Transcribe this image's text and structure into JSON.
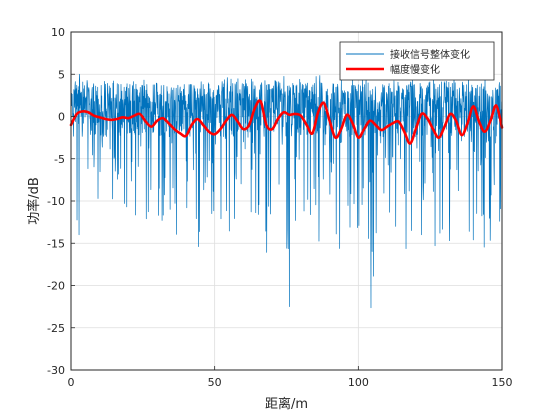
{
  "chart_data": {
    "type": "line",
    "title": "",
    "xlabel": "距离/m",
    "ylabel": "功率/dB",
    "xlim": [
      0,
      150
    ],
    "ylim": [
      -30,
      10
    ],
    "xticks": [
      "0",
      "50",
      "100",
      "150"
    ],
    "yticks": [
      "10",
      "5",
      "0",
      "-5",
      "-10",
      "-15",
      "-20",
      "-25",
      "-30"
    ],
    "grid": true,
    "legend_position": "top-right",
    "series": [
      {
        "name": "接收信号整体变化",
        "color": "#0072BD",
        "style": "thin noisy line, ~1500 samples; plotted as an approximate envelope + sample of the visible extremes",
        "x": [
          0,
          2,
          4,
          6,
          8,
          10,
          12,
          14,
          16,
          18,
          20,
          22,
          24,
          26,
          28,
          30,
          32,
          34,
          36,
          38,
          40,
          42,
          44,
          46,
          48,
          50,
          52,
          54,
          56,
          58,
          60,
          62,
          64,
          66,
          68,
          70,
          72,
          74,
          76,
          78,
          80,
          82,
          84,
          86,
          88,
          90,
          92,
          94,
          96,
          98,
          100,
          102,
          104,
          106,
          108,
          110,
          112,
          114,
          116,
          118,
          120,
          122,
          124,
          126,
          128,
          130,
          132,
          134,
          136,
          138,
          140,
          142,
          144,
          146,
          148,
          150
        ],
        "upper": [
          3,
          4.5,
          5.5,
          4,
          3.5,
          4,
          4.5,
          4,
          4.5,
          3.5,
          4,
          4.5,
          5,
          4,
          3.5,
          4,
          4,
          3.5,
          4,
          3.5,
          3,
          4,
          4,
          4.5,
          4,
          4.5,
          4,
          4.5,
          5,
          4.5,
          4,
          5,
          4.5,
          5,
          4,
          4.5,
          4,
          5,
          4.5,
          4,
          4.5,
          4,
          4.5,
          5,
          4.5,
          4,
          5,
          4.5,
          4,
          4.5,
          4,
          4.5,
          5,
          4.5,
          4,
          5,
          4.5,
          4,
          4.5,
          5,
          4.5,
          4,
          4.5,
          5,
          4,
          4.5,
          5,
          4.5,
          4,
          5,
          4.5,
          4,
          5,
          4,
          4.5,
          4
        ],
        "lower": [
          -8,
          -12,
          -17,
          -10,
          -9,
          -10,
          -11,
          -9,
          -12,
          -10,
          -11,
          -12,
          -14,
          -12,
          -13,
          -14,
          -12,
          -13,
          -15,
          -12,
          -11,
          -14,
          -16,
          -13,
          -12,
          -11,
          -12,
          -13,
          -14,
          -12,
          -13,
          -14,
          -13,
          -12,
          -18,
          -15,
          -14,
          -13,
          -22.5,
          -15,
          -14,
          -13,
          -16,
          -22,
          -15,
          -14,
          -13,
          -19,
          -12,
          -14,
          -13,
          -12,
          -28,
          -14,
          -15,
          -13,
          -12,
          -14,
          -21,
          -13,
          -15,
          -14,
          -13,
          -16,
          -14,
          -13,
          -15,
          -14,
          -12,
          -13,
          -15,
          -14,
          -16,
          -15,
          -13,
          -12
        ]
      },
      {
        "name": "幅度慢变化",
        "color": "#FF0000",
        "style": "thick line",
        "x": [
          0,
          2,
          4,
          6,
          8,
          10,
          12,
          14,
          16,
          18,
          20,
          22,
          24,
          26,
          28,
          30,
          32,
          34,
          36,
          38,
          40,
          42,
          44,
          46,
          48,
          50,
          52,
          54,
          56,
          58,
          60,
          62,
          64,
          66,
          68,
          70,
          72,
          74,
          76,
          78,
          80,
          82,
          84,
          86,
          88,
          90,
          92,
          94,
          96,
          98,
          100,
          102,
          104,
          106,
          108,
          110,
          112,
          114,
          116,
          118,
          120,
          122,
          124,
          126,
          128,
          130,
          132,
          134,
          136,
          138,
          140,
          142,
          144,
          146,
          148,
          150
        ],
        "y": [
          -1,
          0.3,
          0.6,
          0.5,
          0.1,
          -0.1,
          -0.3,
          -0.4,
          -0.3,
          -0.1,
          -0.2,
          0.1,
          0.3,
          -0.6,
          -1.2,
          -0.5,
          -0.2,
          -0.8,
          -1.5,
          -2,
          -2.3,
          -1,
          -0.3,
          -1,
          -1.8,
          -2.1,
          -1.5,
          -0.5,
          0.2,
          -0.6,
          -1.5,
          -1,
          1,
          1.8,
          -1,
          -1.5,
          -0.3,
          0.5,
          0.2,
          0.3,
          0.1,
          -1,
          -2,
          0.5,
          1.6,
          -0.5,
          -2.5,
          -1.5,
          0.2,
          -0.8,
          -2.5,
          -1.5,
          -0.5,
          -1,
          -1.6,
          -1.2,
          -0.8,
          -0.6,
          -1.8,
          -3.2,
          -1.5,
          0.3,
          -0.2,
          -1.5,
          -2.5,
          -1.2,
          0.3,
          -0.5,
          -2.2,
          -0.8,
          1.2,
          -0.6,
          -1.8,
          -0.5,
          1.3,
          -1.3
        ]
      }
    ]
  }
}
